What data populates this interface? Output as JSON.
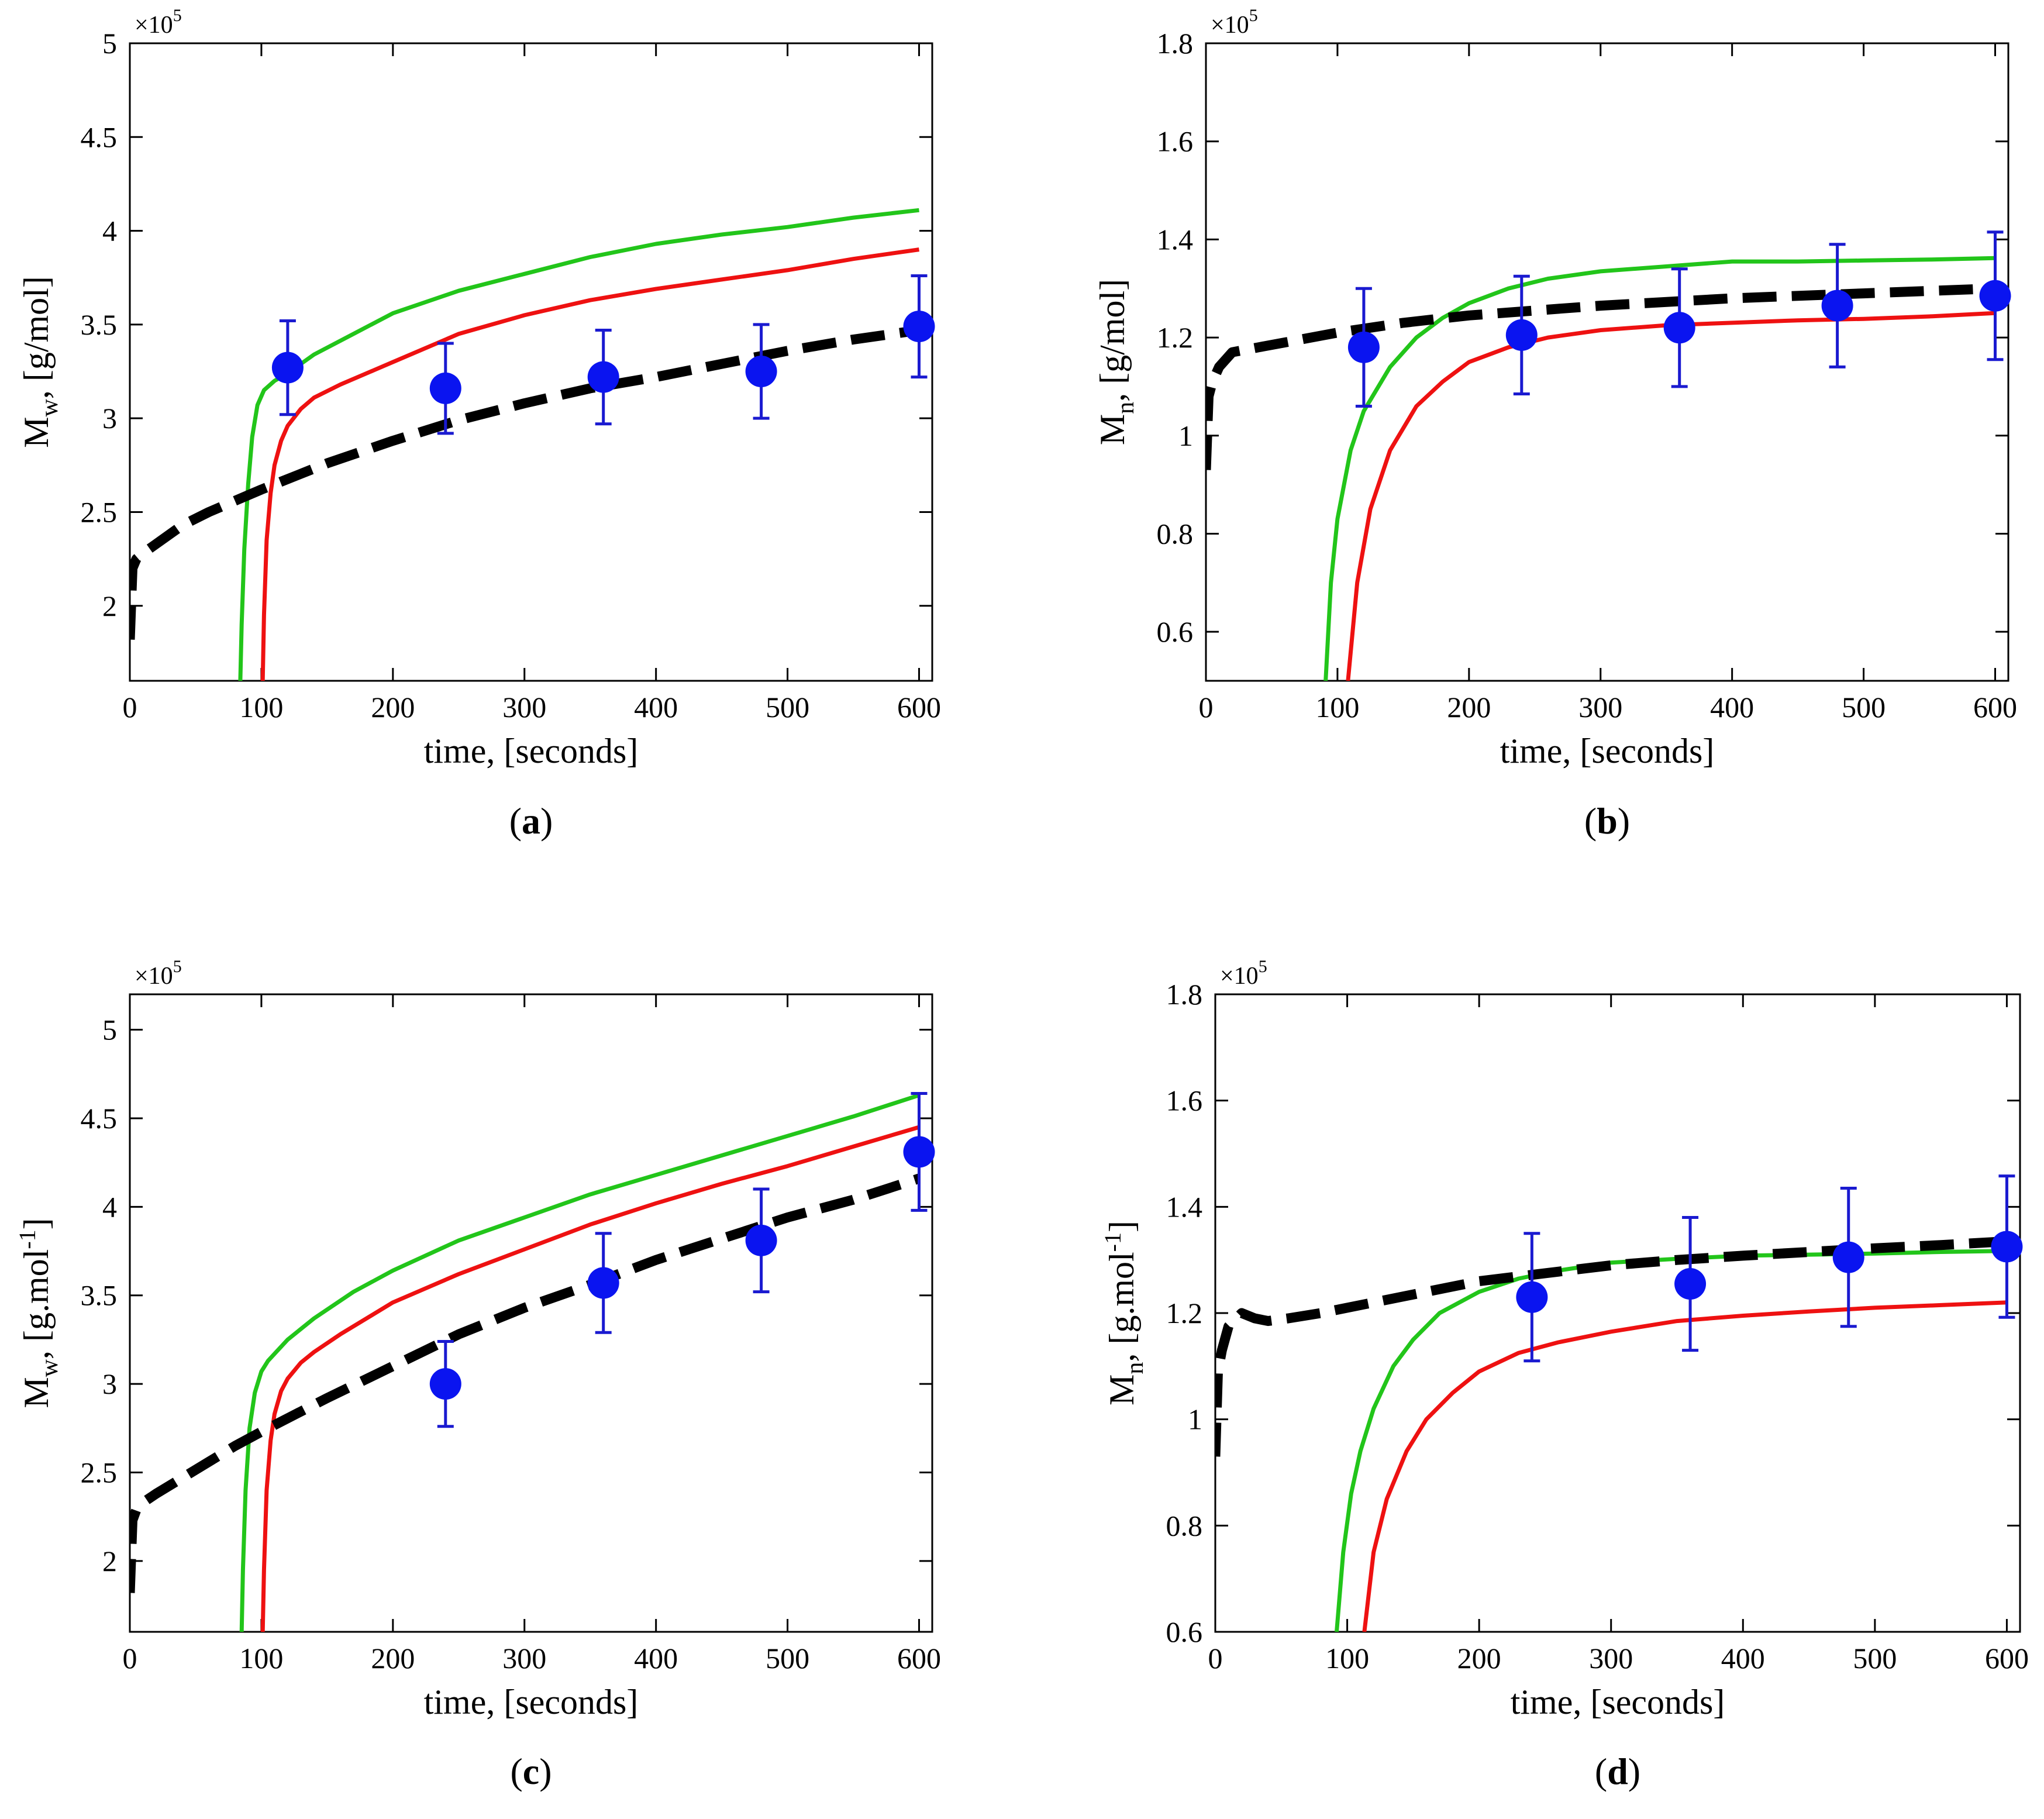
{
  "colors": {
    "green": "#22c51a",
    "red": "#ee1111",
    "black": "#000000",
    "marker": "#0a14f0",
    "errorbar": "#1a1ad0",
    "axis": "#000000"
  },
  "chart_data": [
    {
      "type": "line",
      "panel_label": "(a)",
      "panel_letter": "a",
      "ylabel": "M",
      "ylabel_sub": "w",
      "ylabel_unit": ", [g/mol]",
      "xlabel": "time, [seconds]",
      "multiplier": "×10",
      "multiplier_exp": "5",
      "xlim": [
        0,
        610
      ],
      "ylim": [
        1.6,
        5.0
      ],
      "xticks": [
        0,
        100,
        200,
        300,
        400,
        500,
        600
      ],
      "yticks": [
        2,
        2.5,
        3,
        3.5,
        4,
        4.5,
        5
      ],
      "series": [
        {
          "name": "green model",
          "color": "green",
          "style": "solid",
          "x": [
            84,
            85,
            87,
            90,
            93,
            97,
            102,
            110,
            120,
            140,
            170,
            200,
            250,
            300,
            350,
            400,
            450,
            500,
            550,
            600
          ],
          "y": [
            1.6,
            1.9,
            2.3,
            2.65,
            2.9,
            3.07,
            3.15,
            3.2,
            3.24,
            3.34,
            3.45,
            3.56,
            3.68,
            3.77,
            3.86,
            3.93,
            3.98,
            4.02,
            4.07,
            4.11
          ]
        },
        {
          "name": "red model",
          "color": "red",
          "style": "solid",
          "x": [
            101,
            102,
            104,
            107,
            110,
            115,
            120,
            130,
            140,
            160,
            200,
            250,
            300,
            350,
            400,
            450,
            500,
            550,
            600
          ],
          "y": [
            1.6,
            1.95,
            2.35,
            2.6,
            2.75,
            2.88,
            2.96,
            3.05,
            3.11,
            3.18,
            3.3,
            3.45,
            3.55,
            3.63,
            3.69,
            3.74,
            3.79,
            3.85,
            3.9
          ]
        },
        {
          "name": "black dashed model",
          "color": "black",
          "style": "dashed",
          "x": [
            0,
            2,
            5,
            10,
            20,
            40,
            60,
            80,
            100,
            150,
            200,
            250,
            300,
            350,
            400,
            450,
            500,
            550,
            600
          ],
          "y": [
            1.82,
            2.2,
            2.25,
            2.28,
            2.33,
            2.43,
            2.5,
            2.56,
            2.62,
            2.76,
            2.88,
            2.99,
            3.08,
            3.16,
            3.22,
            3.29,
            3.36,
            3.42,
            3.47
          ]
        },
        {
          "name": "experimental",
          "color": "marker",
          "style": "markers",
          "x": [
            120,
            240,
            360,
            480,
            600
          ],
          "y": [
            3.27,
            3.16,
            3.22,
            3.25,
            3.49
          ],
          "err": [
            0.25,
            0.24,
            0.25,
            0.25,
            0.27
          ]
        }
      ]
    },
    {
      "type": "line",
      "panel_label": "(b)",
      "panel_letter": "b",
      "ylabel": "M",
      "ylabel_sub": "n",
      "ylabel_unit": ", [g/mol]",
      "xlabel": "time, [seconds]",
      "multiplier": "×10",
      "multiplier_exp": "5",
      "xlim": [
        0,
        610
      ],
      "ylim": [
        0.5,
        1.8
      ],
      "xticks": [
        0,
        100,
        200,
        300,
        400,
        500,
        600
      ],
      "yticks": [
        0.6,
        0.8,
        1,
        1.2,
        1.4,
        1.6,
        1.8
      ],
      "series": [
        {
          "name": "green model",
          "color": "green",
          "style": "solid",
          "x": [
            91,
            95,
            100,
            110,
            120,
            140,
            160,
            180,
            200,
            230,
            260,
            300,
            350,
            400,
            450,
            500,
            550,
            600
          ],
          "y": [
            0.5,
            0.7,
            0.83,
            0.97,
            1.05,
            1.14,
            1.2,
            1.24,
            1.27,
            1.3,
            1.32,
            1.335,
            1.345,
            1.355,
            1.355,
            1.357,
            1.359,
            1.362
          ]
        },
        {
          "name": "red model",
          "color": "red",
          "style": "solid",
          "x": [
            108,
            115,
            125,
            140,
            160,
            180,
            200,
            230,
            260,
            300,
            350,
            400,
            450,
            500,
            550,
            600
          ],
          "y": [
            0.5,
            0.7,
            0.85,
            0.97,
            1.06,
            1.11,
            1.15,
            1.18,
            1.2,
            1.215,
            1.225,
            1.23,
            1.235,
            1.238,
            1.243,
            1.25
          ]
        },
        {
          "name": "black dashed model",
          "color": "black",
          "style": "dashed",
          "x": [
            0,
            2,
            5,
            10,
            20,
            40,
            60,
            100,
            150,
            200,
            300,
            400,
            500,
            600
          ],
          "y": [
            0.93,
            1.08,
            1.11,
            1.14,
            1.17,
            1.18,
            1.19,
            1.21,
            1.23,
            1.245,
            1.265,
            1.28,
            1.29,
            1.3
          ]
        },
        {
          "name": "experimental",
          "color": "marker",
          "style": "markers",
          "x": [
            120,
            240,
            360,
            480,
            600
          ],
          "y": [
            1.18,
            1.205,
            1.22,
            1.265,
            1.285
          ],
          "err": [
            0.12,
            0.12,
            0.12,
            0.125,
            0.13
          ]
        }
      ]
    },
    {
      "type": "line",
      "panel_label": "(c)",
      "panel_letter": "c",
      "ylabel": "M",
      "ylabel_sub": "w",
      "ylabel_unit": ", [g.mol",
      "ylabel_unit_sup": "-1",
      "ylabel_unit_end": "]",
      "xlabel": "time, [seconds]",
      "multiplier": "×10",
      "multiplier_exp": "5",
      "xlim": [
        0,
        610
      ],
      "ylim": [
        1.6,
        5.2
      ],
      "xticks": [
        0,
        100,
        200,
        300,
        400,
        500,
        600
      ],
      "yticks": [
        2,
        2.5,
        3,
        3.5,
        4,
        4.5,
        5
      ],
      "series": [
        {
          "name": "green model",
          "color": "green",
          "style": "solid",
          "x": [
            85,
            86,
            88,
            91,
            95,
            100,
            105,
            110,
            120,
            140,
            170,
            200,
            250,
            300,
            350,
            400,
            450,
            500,
            550,
            600
          ],
          "y": [
            1.6,
            1.95,
            2.4,
            2.75,
            2.95,
            3.07,
            3.13,
            3.17,
            3.25,
            3.37,
            3.52,
            3.64,
            3.81,
            3.94,
            4.07,
            4.18,
            4.29,
            4.4,
            4.51,
            4.63
          ]
        },
        {
          "name": "red model",
          "color": "red",
          "style": "solid",
          "x": [
            101,
            102,
            104,
            107,
            110,
            115,
            120,
            130,
            140,
            160,
            200,
            250,
            300,
            350,
            400,
            450,
            500,
            550,
            600
          ],
          "y": [
            1.6,
            1.95,
            2.4,
            2.68,
            2.83,
            2.96,
            3.03,
            3.12,
            3.18,
            3.28,
            3.46,
            3.62,
            3.76,
            3.9,
            4.02,
            4.13,
            4.23,
            4.34,
            4.45
          ]
        },
        {
          "name": "black dashed model",
          "color": "black",
          "style": "dashed",
          "x": [
            0,
            2,
            5,
            10,
            20,
            40,
            60,
            80,
            100,
            150,
            200,
            250,
            300,
            350,
            400,
            450,
            500,
            550,
            600
          ],
          "y": [
            1.82,
            2.23,
            2.29,
            2.33,
            2.38,
            2.47,
            2.56,
            2.65,
            2.73,
            2.92,
            3.1,
            3.28,
            3.43,
            3.56,
            3.7,
            3.82,
            3.94,
            4.04,
            4.16
          ]
        },
        {
          "name": "experimental",
          "color": "marker",
          "style": "markers",
          "x": [
            240,
            360,
            480,
            600
          ],
          "y": [
            3.0,
            3.57,
            3.81,
            4.31
          ],
          "err": [
            0.24,
            0.28,
            0.29,
            0.33
          ]
        }
      ]
    },
    {
      "type": "line",
      "panel_label": "(d)",
      "panel_letter": "d",
      "ylabel": "M",
      "ylabel_sub": "n",
      "ylabel_unit": ", [g.mol",
      "ylabel_unit_sup": "-1",
      "ylabel_unit_end": "]",
      "xlabel": "time, [seconds]",
      "multiplier": "×10",
      "multiplier_exp": "5",
      "xlim": [
        0,
        610
      ],
      "ylim": [
        0.6,
        1.8
      ],
      "xticks": [
        0,
        100,
        200,
        300,
        400,
        500,
        600
      ],
      "yticks": [
        0.6,
        0.8,
        1,
        1.2,
        1.4,
        1.6,
        1.8
      ],
      "series": [
        {
          "name": "green model",
          "color": "green",
          "style": "solid",
          "x": [
            92,
            97,
            103,
            110,
            120,
            135,
            150,
            170,
            200,
            230,
            260,
            300,
            350,
            400,
            450,
            500,
            550,
            600
          ],
          "y": [
            0.6,
            0.75,
            0.86,
            0.94,
            1.02,
            1.1,
            1.15,
            1.2,
            1.24,
            1.265,
            1.28,
            1.295,
            1.302,
            1.308,
            1.31,
            1.312,
            1.315,
            1.317
          ]
        },
        {
          "name": "red model",
          "color": "red",
          "style": "solid",
          "x": [
            113,
            120,
            130,
            145,
            160,
            180,
            200,
            230,
            260,
            300,
            350,
            400,
            450,
            500,
            550,
            600
          ],
          "y": [
            0.6,
            0.75,
            0.85,
            0.94,
            1.0,
            1.05,
            1.09,
            1.125,
            1.145,
            1.165,
            1.185,
            1.195,
            1.203,
            1.21,
            1.215,
            1.22
          ]
        },
        {
          "name": "black dashed model",
          "color": "black",
          "style": "dashed",
          "x": [
            0,
            2,
            5,
            10,
            20,
            30,
            40,
            55,
            80,
            120,
            160,
            200,
            250,
            300,
            350,
            400,
            450,
            500,
            550,
            600
          ],
          "y": [
            0.93,
            1.09,
            1.13,
            1.175,
            1.2,
            1.19,
            1.185,
            1.19,
            1.2,
            1.22,
            1.24,
            1.26,
            1.275,
            1.29,
            1.3,
            1.308,
            1.315,
            1.322,
            1.328,
            1.335
          ]
        },
        {
          "name": "experimental",
          "color": "marker",
          "style": "markers",
          "x": [
            240,
            360,
            480,
            600
          ],
          "y": [
            1.23,
            1.255,
            1.305,
            1.325
          ],
          "err": [
            0.12,
            0.125,
            0.13,
            0.133
          ]
        }
      ]
    }
  ]
}
